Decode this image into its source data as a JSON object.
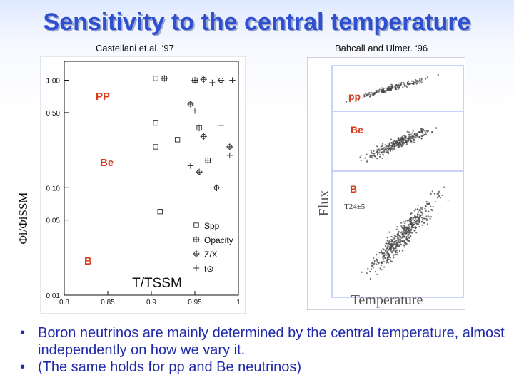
{
  "slide": {
    "title": "Sensitivity to the  central temperature",
    "left_citation": "Castellani et al. ‘97",
    "right_citation": "Bahcall and Ulmer. ‘96"
  },
  "bullets": [
    {
      "text": "Boron neutrinos are mainly determined by the central temperature, almost independently on how  we vary it."
    },
    {
      "text": "(The same holds for pp and Be neutrinos)"
    }
  ],
  "chart_data": [
    {
      "type": "scatter",
      "ylabel": "Φi/ΦiSSM",
      "xlabel": "T/TSSM",
      "xlim": [
        0.8,
        1.0
      ],
      "ylim": [
        0.01,
        1.5
      ],
      "yscale": "log",
      "x_ticks": [
        {
          "value": 0.8,
          "label": "0.8"
        },
        {
          "value": 0.85,
          "label": "0.85"
        },
        {
          "value": 0.9,
          "label": "0.9"
        },
        {
          "value": 0.95,
          "label": "0.95"
        },
        {
          "value": 1.0,
          "label": "1"
        }
      ],
      "y_ticks": [
        {
          "value": 1.0,
          "label": "1.00"
        },
        {
          "value": 0.5,
          "label": "0.50"
        },
        {
          "value": 0.1,
          "label": "0.10"
        },
        {
          "value": 0.05,
          "label": "0.05"
        },
        {
          "value": 0.01,
          "label": "0.01"
        }
      ],
      "group_labels": [
        {
          "text": "PP",
          "color": "#d83a1a"
        },
        {
          "text": "Be",
          "color": "#d83a1a"
        },
        {
          "text": "B",
          "color": "#d83a1a"
        }
      ],
      "legend_position": "bottom-right",
      "series": [
        {
          "name": "Spp",
          "marker": "square",
          "points": [
            [
              0.905,
              1.04
            ],
            [
              0.905,
              0.4
            ],
            [
              0.905,
              0.24
            ],
            [
              0.91,
              0.06
            ],
            [
              0.93,
              0.28
            ]
          ]
        },
        {
          "name": "Opacity",
          "marker": "plus-square",
          "points": [
            [
              0.915,
              1.04
            ],
            [
              0.95,
              1.0
            ],
            [
              0.955,
              0.36
            ],
            [
              0.965,
              0.18
            ]
          ]
        },
        {
          "name": "Z/X",
          "marker": "circle-plus",
          "points": [
            [
              0.96,
              1.02
            ],
            [
              0.98,
              1.0
            ],
            [
              0.945,
              0.6
            ],
            [
              0.96,
              0.3
            ],
            [
              0.955,
              0.14
            ],
            [
              0.975,
              0.1
            ],
            [
              0.99,
              0.24
            ]
          ]
        },
        {
          "name": "t⊙",
          "marker": "cross",
          "points": [
            [
              0.97,
              0.95
            ],
            [
              0.993,
              1.0
            ],
            [
              0.95,
              0.52
            ],
            [
              0.945,
              0.16
            ],
            [
              0.98,
              0.38
            ],
            [
              0.99,
              0.2
            ]
          ]
        }
      ]
    },
    {
      "type": "scatter",
      "ylabel": "Flux",
      "xlabel": "Temperature",
      "group_labels": [
        {
          "text": "pp",
          "color": "#d83a1a"
        },
        {
          "text": "Be",
          "color": "#d83a1a"
        },
        {
          "text": "B",
          "color": "#d83a1a"
        }
      ],
      "annotation": "T24±5"
    }
  ]
}
